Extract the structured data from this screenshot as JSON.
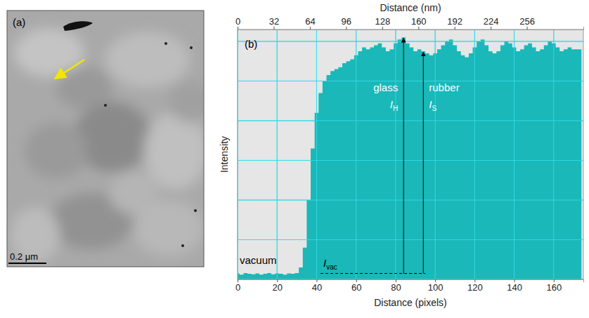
{
  "chart_data": [
    {
      "type": "image",
      "annotations": [
        "(a)",
        "0.2 μm"
      ]
    },
    {
      "type": "area",
      "panel": "(b)",
      "x_label": "Distance (pixels)",
      "x2_label": "Distance (nm)",
      "y_label": "Intensity",
      "x": [
        0,
        2,
        4,
        6,
        8,
        10,
        12,
        14,
        16,
        18,
        20,
        22,
        24,
        26,
        28,
        30,
        32,
        34,
        36,
        38,
        40,
        42,
        44,
        46,
        48,
        50,
        52,
        54,
        56,
        58,
        60,
        62,
        64,
        66,
        68,
        70,
        72,
        74,
        76,
        78,
        80,
        82,
        84,
        86,
        88,
        90,
        92,
        94,
        96,
        98,
        100,
        102,
        104,
        106,
        108,
        110,
        112,
        114,
        116,
        118,
        120,
        122,
        124,
        126,
        128,
        130,
        132,
        134,
        136,
        138,
        140,
        142,
        144,
        146,
        148,
        150,
        152,
        154,
        156,
        158,
        160,
        162,
        164,
        166,
        168,
        170,
        172,
        174
      ],
      "values": [
        0.15,
        0.12,
        0.16,
        0.14,
        0.13,
        0.15,
        0.12,
        0.14,
        0.16,
        0.13,
        0.15,
        0.14,
        0.12,
        0.15,
        0.14,
        0.16,
        0.3,
        0.8,
        2.0,
        3.3,
        4.2,
        4.7,
        5.0,
        5.15,
        5.25,
        5.3,
        5.35,
        5.45,
        5.5,
        5.55,
        5.65,
        5.75,
        5.85,
        5.8,
        5.85,
        5.9,
        5.95,
        5.85,
        5.75,
        5.8,
        5.95,
        6.05,
        6.1,
        5.95,
        5.85,
        5.75,
        5.8,
        5.75,
        5.7,
        5.65,
        5.7,
        5.8,
        5.9,
        6.0,
        6.05,
        5.9,
        5.75,
        5.65,
        5.6,
        5.7,
        5.85,
        6.0,
        6.05,
        5.9,
        5.75,
        5.7,
        5.75,
        5.9,
        6.0,
        5.95,
        5.85,
        5.75,
        5.8,
        5.9,
        5.95,
        5.85,
        5.75,
        5.8,
        5.9,
        6.0,
        5.95,
        5.85,
        5.75,
        5.8,
        5.85,
        5.8,
        5.8,
        5.8
      ],
      "color": "#1ab8b8",
      "xlim": [
        0,
        175
      ],
      "xticks": [
        0,
        20,
        40,
        60,
        80,
        100,
        120,
        140,
        160
      ],
      "x2lim": [
        0,
        306
      ],
      "x2ticks": [
        0,
        32,
        64,
        96,
        128,
        160,
        192,
        224,
        256
      ],
      "ylim": [
        0,
        6.3
      ],
      "yticks": [
        0,
        1,
        2,
        3,
        4,
        5,
        6
      ],
      "grid": true,
      "tick_labels": "x",
      "annotations": {
        "regions": [
          "vacuum",
          "glass",
          "rubber"
        ],
        "arrows": [
          {
            "base": "I",
            "sub": "H",
            "x": 84,
            "y": 6.1
          },
          {
            "base": "I",
            "sub": "S",
            "x": 94,
            "y": 5.75
          }
        ],
        "baseline": {
          "base": "I",
          "sub": "vac",
          "y": 0.15,
          "x": [
            42,
            95
          ]
        }
      }
    }
  ]
}
